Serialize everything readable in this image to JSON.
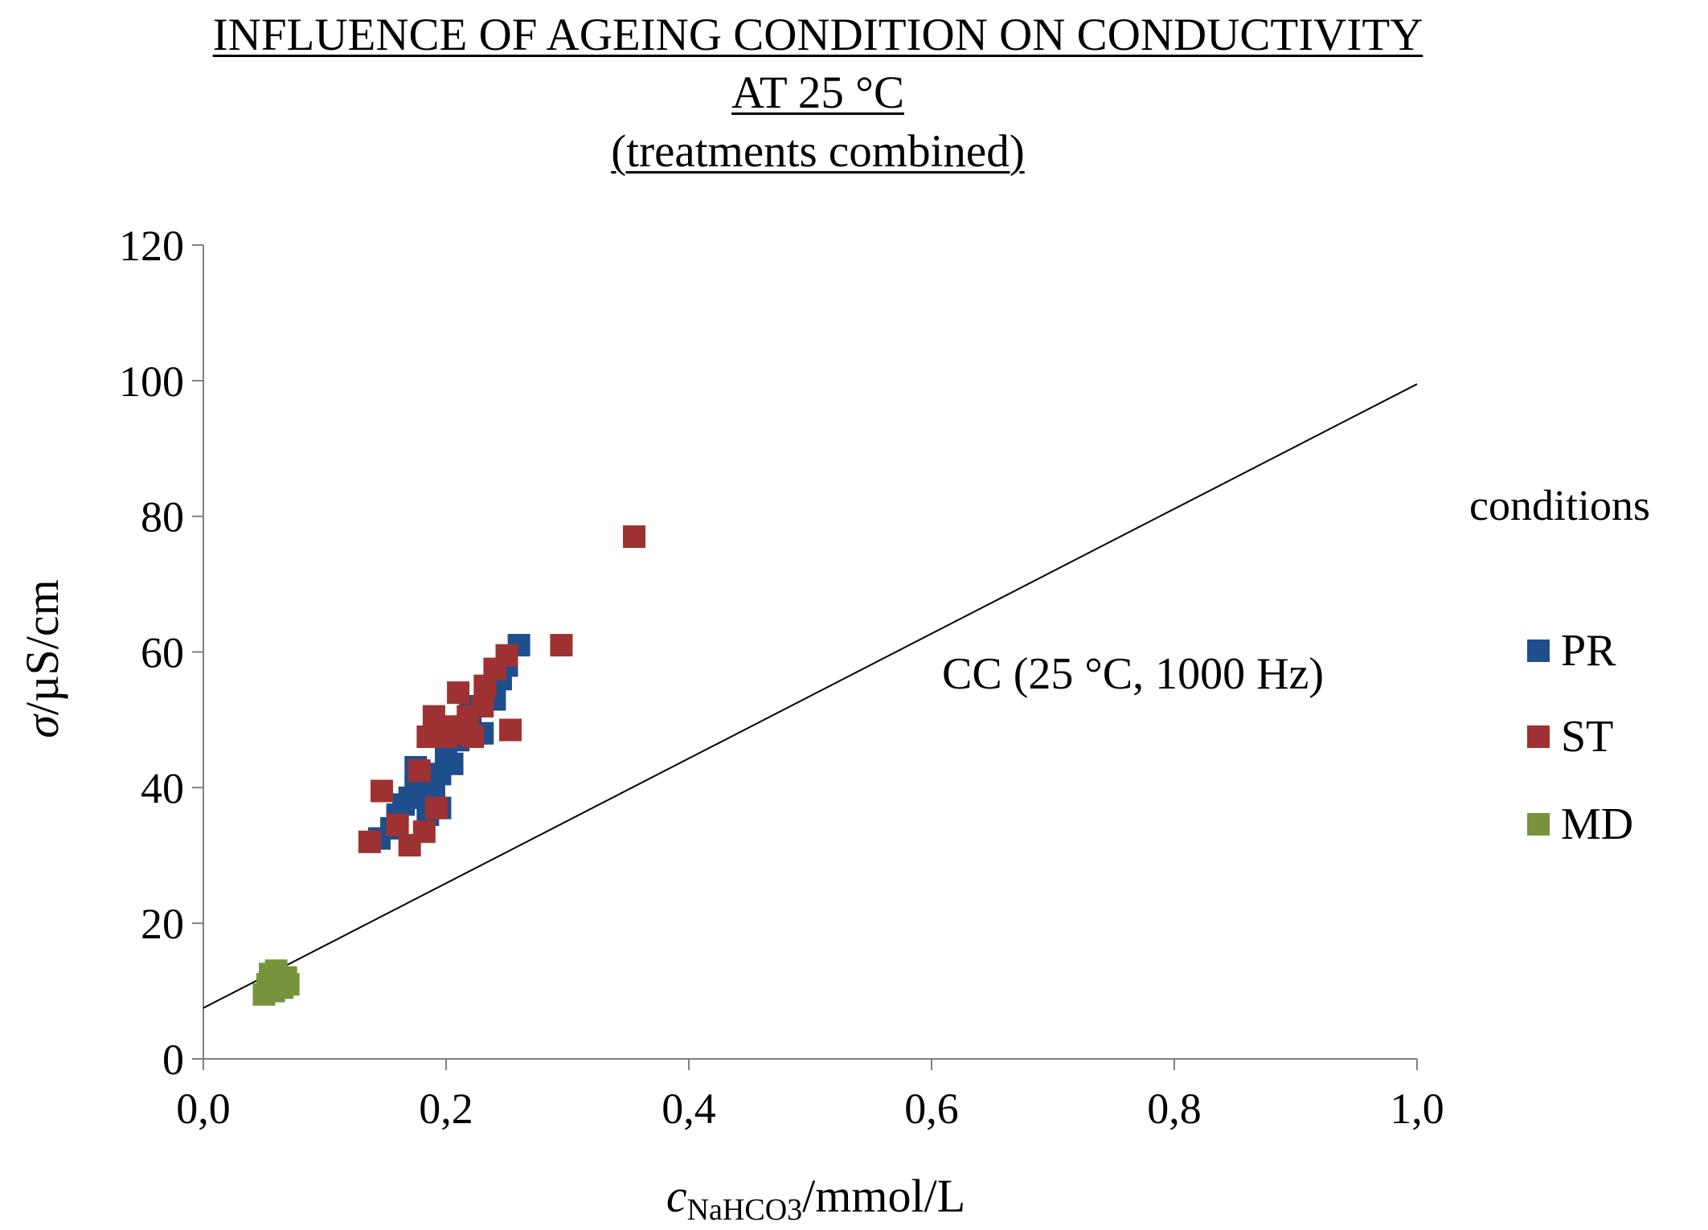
{
  "title": {
    "line1": "INFLUENCE OF AGEING CONDITION ON CONDUCTIVITY",
    "line2": "AT 25 °C",
    "line3": "(treatments combined)"
  },
  "chart_data": {
    "type": "scatter",
    "title": "INFLUENCE OF AGEING CONDITION ON CONDUCTIVITY AT 25 °C (treatments combined)",
    "xlabel_main": "c",
    "xlabel_sub": "NaHCO3",
    "xlabel_unit": "/mmol/L",
    "ylabel_main": "σ",
    "ylabel_unit": "/µS/cm",
    "xlim": [
      0,
      1.0
    ],
    "ylim": [
      0,
      120
    ],
    "x_ticks": [
      0,
      0.2,
      0.4,
      0.6,
      0.8,
      1.0
    ],
    "x_tick_labels": [
      "0,0",
      "0,2",
      "0,4",
      "0,6",
      "0,8",
      "1,0"
    ],
    "y_ticks": [
      0,
      20,
      40,
      60,
      80,
      100,
      120
    ],
    "y_tick_labels": [
      "0",
      "20",
      "40",
      "60",
      "80",
      "100",
      "120"
    ],
    "grid": false,
    "legend_title": "conditions",
    "legend_position": "right",
    "series": [
      {
        "name": "PR",
        "color": "#1f4e8c",
        "points": [
          [
            0.145,
            32.5
          ],
          [
            0.155,
            34
          ],
          [
            0.16,
            36
          ],
          [
            0.165,
            37.5
          ],
          [
            0.17,
            38.5
          ],
          [
            0.175,
            40
          ],
          [
            0.175,
            43
          ],
          [
            0.18,
            41
          ],
          [
            0.18,
            39
          ],
          [
            0.185,
            36
          ],
          [
            0.19,
            38
          ],
          [
            0.19,
            40
          ],
          [
            0.195,
            37
          ],
          [
            0.195,
            42
          ],
          [
            0.2,
            44
          ],
          [
            0.2,
            46.5
          ],
          [
            0.205,
            43.5
          ],
          [
            0.21,
            47
          ],
          [
            0.215,
            49
          ],
          [
            0.22,
            51
          ],
          [
            0.225,
            52
          ],
          [
            0.23,
            48
          ],
          [
            0.235,
            54
          ],
          [
            0.24,
            53
          ],
          [
            0.245,
            56
          ],
          [
            0.25,
            58
          ],
          [
            0.26,
            61
          ]
        ]
      },
      {
        "name": "ST",
        "color": "#9e3232",
        "points": [
          [
            0.137,
            32
          ],
          [
            0.147,
            39.5
          ],
          [
            0.16,
            34.5
          ],
          [
            0.17,
            31.5
          ],
          [
            0.178,
            42.5
          ],
          [
            0.182,
            33.5
          ],
          [
            0.185,
            47.5
          ],
          [
            0.19,
            50.5
          ],
          [
            0.192,
            37
          ],
          [
            0.195,
            48
          ],
          [
            0.2,
            47.5
          ],
          [
            0.205,
            49
          ],
          [
            0.21,
            54
          ],
          [
            0.215,
            48
          ],
          [
            0.218,
            50.5
          ],
          [
            0.222,
            47.5
          ],
          [
            0.23,
            52
          ],
          [
            0.232,
            55
          ],
          [
            0.24,
            57.5
          ],
          [
            0.25,
            59.5
          ],
          [
            0.253,
            48.5
          ],
          [
            0.295,
            61
          ],
          [
            0.355,
            77
          ]
        ]
      },
      {
        "name": "MD",
        "color": "#77933c",
        "points": [
          [
            0.05,
            9.5
          ],
          [
            0.053,
            11
          ],
          [
            0.055,
            12.5
          ],
          [
            0.058,
            10
          ],
          [
            0.06,
            13
          ],
          [
            0.062,
            11.5
          ],
          [
            0.065,
            10.5
          ],
          [
            0.068,
            12
          ],
          [
            0.07,
            11
          ]
        ]
      }
    ],
    "reference_line": {
      "label": "CC (25 °C, 1000 Hz)",
      "x": [
        0,
        1.0
      ],
      "y": [
        7.5,
        99.5
      ],
      "color": "#000000"
    }
  }
}
